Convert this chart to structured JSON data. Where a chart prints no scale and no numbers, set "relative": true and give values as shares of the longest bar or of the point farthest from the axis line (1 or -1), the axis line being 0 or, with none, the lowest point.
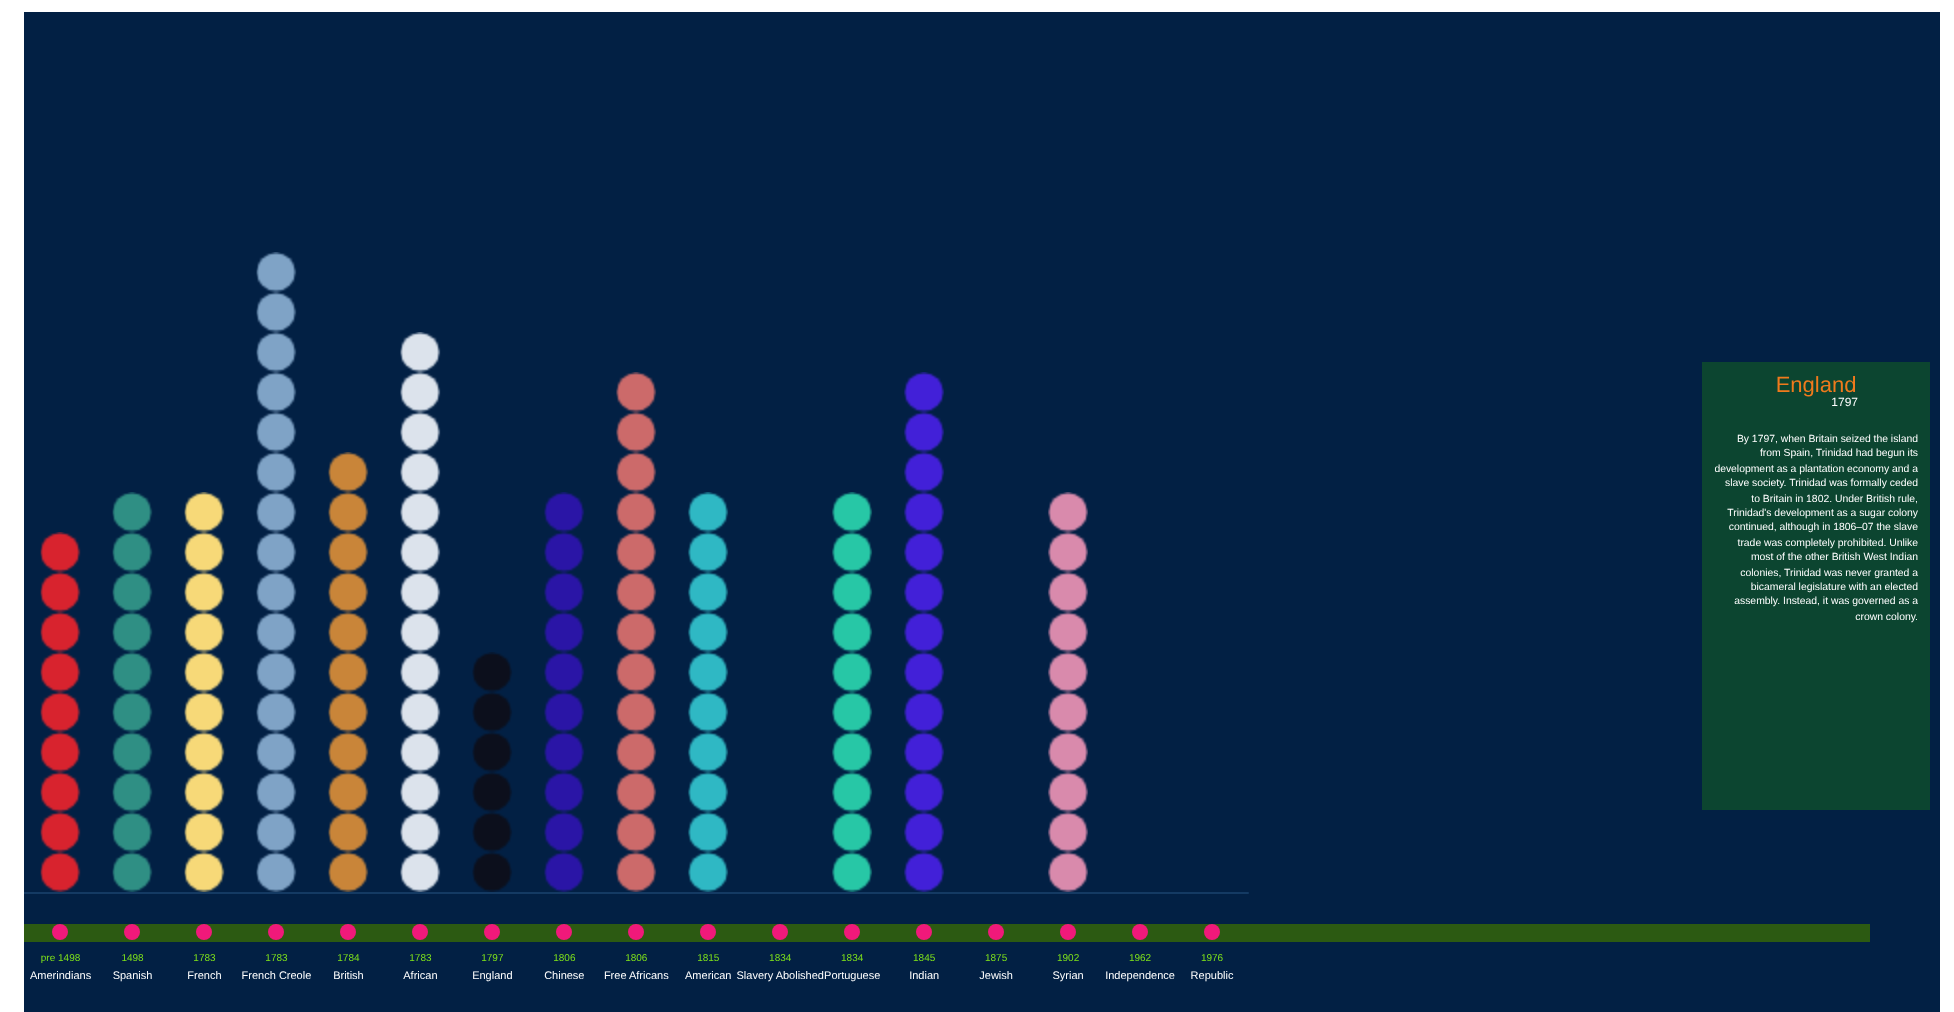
{
  "chart_data": {
    "type": "bar",
    "relative": true,
    "categories": [
      "pre 1498\nAmerindians",
      "1498\nSpanish",
      "1783\nFrench",
      "1783\nFrench Creole",
      "1784\nBritish",
      "1783\nAfrican",
      "1797\nEngland",
      "1806\nChinese",
      "1806\nFree Africans",
      "1815\nAmerican",
      "1834\nSlavery Abolished",
      "1834\nPortuguese",
      "1845\nIndian",
      "1875\nJewish",
      "1902\nSyrian",
      "1962\nIndependence",
      "1976\nRepublic"
    ],
    "values": [
      0.5625,
      0.625,
      0.625,
      1,
      0.6875,
      0.875,
      0.375,
      0.625,
      0.8125,
      0.625,
      0,
      0.625,
      0.8125,
      0,
      0.625,
      0,
      0
    ],
    "colors": [
      "#d8232e",
      "#2f8f84",
      "#f7d978",
      "#7fa3c6",
      "#c98539",
      "#dce3ec",
      "#0c0f1c",
      "#2a15a6",
      "#cc6a6a",
      "#2fb8c4",
      "#888888",
      "#27c7a6",
      "#4220d8",
      "#888888",
      "#d98aac",
      "#888888",
      "#888888"
    ],
    "annotations": [
      "England",
      "1797",
      "By 1797, when Britain seized the island from Spain, Trinidad had begun its development as a plantation economy and a slave society. Trinidad was formally ceded to Britain in 1802. Under British rule, Trinidad's development as a sugar colony continued, although in 1806–07 the slave trade was completely prohibited. Unlike most of the other British West Indian colonies, Trinidad was never granted a bicameral legislature with an elected assembly. Instead, it was governed as a crown colony."
    ]
  }
}
